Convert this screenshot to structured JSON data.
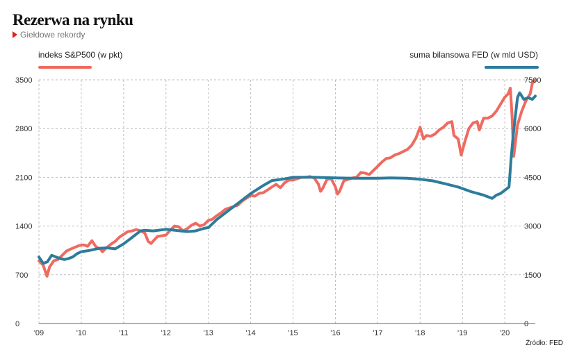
{
  "title": "Rezerwa na rynku",
  "subtitle": "Giełdowe rekordy",
  "source": "Źródło: FED",
  "legend": {
    "left_label": "indeks S&P500 (w pkt)",
    "right_label": "suma bilansowa FED (w mld USD)"
  },
  "colors": {
    "sp500": "#ef6a60",
    "fed": "#2d7c9c",
    "grid": "#bdbdbd"
  },
  "chart_data": {
    "type": "line",
    "x_tick_labels": [
      "'09",
      "'10",
      "'11",
      "'12",
      "'13",
      "'14",
      "'15",
      "'16",
      "'17",
      "'18",
      "'19",
      "'20"
    ],
    "xlim": [
      2009.0,
      2020.72
    ],
    "y_left": {
      "ticks": [
        0,
        700,
        1400,
        2100,
        2800,
        3500
      ],
      "range": [
        0,
        3500
      ]
    },
    "y_right": {
      "ticks": [
        0,
        1500,
        3000,
        4500,
        6000,
        7500
      ],
      "range": [
        0,
        7500
      ]
    },
    "grid": true,
    "series": [
      {
        "name": "indeks S&P500 (w pkt)",
        "axis": "left",
        "color": "#ef6a60",
        "x": [
          2009.0,
          2009.1,
          2009.19,
          2009.25,
          2009.35,
          2009.45,
          2009.55,
          2009.65,
          2009.75,
          2009.85,
          2009.95,
          2010.05,
          2010.15,
          2010.25,
          2010.35,
          2010.45,
          2010.5,
          2010.58,
          2010.7,
          2010.8,
          2010.9,
          2011.0,
          2011.1,
          2011.2,
          2011.3,
          2011.4,
          2011.5,
          2011.58,
          2011.65,
          2011.72,
          2011.8,
          2011.9,
          2012.0,
          2012.1,
          2012.2,
          2012.3,
          2012.4,
          2012.5,
          2012.6,
          2012.7,
          2012.8,
          2012.9,
          2013.0,
          2013.1,
          2013.2,
          2013.3,
          2013.4,
          2013.5,
          2013.6,
          2013.7,
          2013.8,
          2013.9,
          2014.0,
          2014.1,
          2014.2,
          2014.3,
          2014.4,
          2014.5,
          2014.6,
          2014.7,
          2014.8,
          2014.9,
          2015.0,
          2015.1,
          2015.2,
          2015.3,
          2015.4,
          2015.5,
          2015.6,
          2015.65,
          2015.7,
          2015.8,
          2015.9,
          2016.0,
          2016.05,
          2016.1,
          2016.2,
          2016.3,
          2016.4,
          2016.5,
          2016.6,
          2016.7,
          2016.8,
          2016.9,
          2017.0,
          2017.1,
          2017.2,
          2017.3,
          2017.4,
          2017.5,
          2017.6,
          2017.7,
          2017.8,
          2017.9,
          2018.0,
          2018.08,
          2018.15,
          2018.25,
          2018.35,
          2018.45,
          2018.55,
          2018.65,
          2018.75,
          2018.8,
          2018.9,
          2018.97,
          2019.05,
          2019.15,
          2019.25,
          2019.35,
          2019.4,
          2019.5,
          2019.6,
          2019.7,
          2019.8,
          2019.9,
          2020.0,
          2020.08,
          2020.13,
          2020.17,
          2020.21,
          2020.25,
          2020.3,
          2020.4,
          2020.5,
          2020.6,
          2020.65,
          2020.72
        ],
        "values": [
          900,
          840,
          680,
          810,
          900,
          920,
          980,
          1040,
          1070,
          1095,
          1120,
          1130,
          1110,
          1190,
          1100,
          1070,
          1030,
          1080,
          1140,
          1180,
          1240,
          1280,
          1320,
          1330,
          1350,
          1330,
          1300,
          1180,
          1150,
          1200,
          1250,
          1260,
          1270,
          1340,
          1400,
          1390,
          1330,
          1360,
          1410,
          1440,
          1400,
          1420,
          1480,
          1500,
          1550,
          1590,
          1640,
          1660,
          1680,
          1700,
          1760,
          1800,
          1840,
          1830,
          1870,
          1880,
          1920,
          1960,
          2000,
          1950,
          2020,
          2060,
          2060,
          2080,
          2100,
          2100,
          2110,
          2090,
          2000,
          1900,
          1940,
          2070,
          2080,
          1960,
          1860,
          1900,
          2050,
          2070,
          2090,
          2100,
          2170,
          2160,
          2140,
          2200,
          2260,
          2320,
          2370,
          2380,
          2420,
          2440,
          2470,
          2500,
          2560,
          2660,
          2820,
          2650,
          2700,
          2690,
          2720,
          2780,
          2820,
          2880,
          2900,
          2700,
          2650,
          2420,
          2600,
          2800,
          2880,
          2900,
          2780,
          2950,
          2950,
          2980,
          3050,
          3150,
          3250,
          3300,
          3380,
          3000,
          2400,
          2600,
          2850,
          3050,
          3200,
          3300,
          3450,
          3500
        ]
      },
      {
        "name": "suma bilansowa FED (w mld USD)",
        "axis": "right",
        "color": "#2d7c9c",
        "x": [
          2009.0,
          2009.1,
          2009.2,
          2009.3,
          2009.4,
          2009.5,
          2009.6,
          2009.7,
          2009.8,
          2009.9,
          2010.0,
          2010.2,
          2010.4,
          2010.6,
          2010.8,
          2011.0,
          2011.2,
          2011.4,
          2011.5,
          2011.7,
          2012.0,
          2012.5,
          2012.7,
          2012.9,
          2013.0,
          2013.2,
          2013.5,
          2013.8,
          2014.0,
          2014.3,
          2014.5,
          2014.8,
          2015.0,
          2015.5,
          2016.0,
          2016.5,
          2017.0,
          2017.3,
          2017.7,
          2018.0,
          2018.3,
          2018.6,
          2018.9,
          2019.2,
          2019.5,
          2019.7,
          2019.8,
          2019.9,
          2020.0,
          2020.1,
          2020.15,
          2020.2,
          2020.25,
          2020.3,
          2020.35,
          2020.45,
          2020.55,
          2020.65,
          2020.72
        ],
        "values": [
          2050,
          1850,
          1900,
          2100,
          2050,
          2000,
          1970,
          2000,
          2050,
          2150,
          2210,
          2250,
          2310,
          2330,
          2300,
          2450,
          2650,
          2850,
          2870,
          2850,
          2900,
          2830,
          2850,
          2930,
          2950,
          3200,
          3500,
          3800,
          4000,
          4250,
          4400,
          4450,
          4500,
          4500,
          4480,
          4470,
          4470,
          4480,
          4470,
          4440,
          4390,
          4300,
          4200,
          4060,
          3950,
          3850,
          3950,
          4000,
          4100,
          4200,
          5100,
          5800,
          6400,
          6950,
          7100,
          6900,
          6950,
          6900,
          7000
        ]
      }
    ]
  }
}
